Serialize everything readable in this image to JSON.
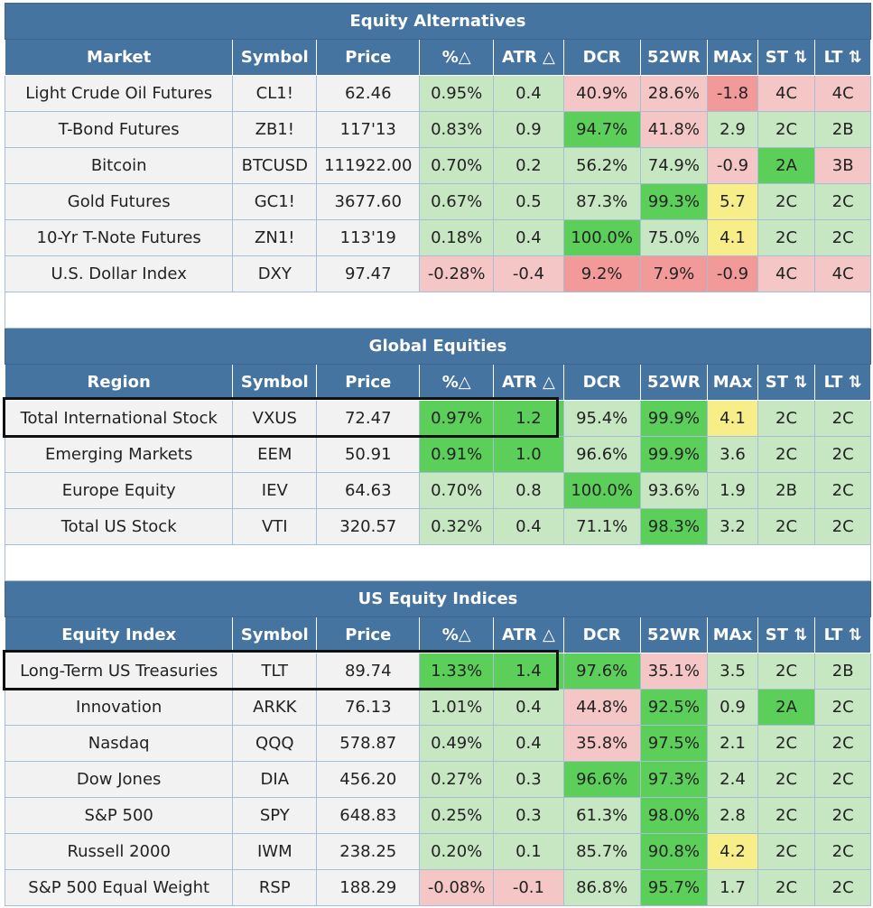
{
  "headers": [
    "Market",
    "Symbol",
    "Price",
    "%△",
    "ATR △",
    "DCR",
    "52WR",
    "MAx",
    "ST ⇅",
    "LT ⇅"
  ],
  "sections": [
    {
      "title": "Equity Alternatives",
      "first_header": "Market",
      "rows": [
        {
          "name": "Light Crude Oil Futures",
          "symbol": "CL1!",
          "price": "62.46",
          "pct": "0.95%",
          "atr": "0.4",
          "dcr": "40.9%",
          "wr": "28.6%",
          "max": "-1.8",
          "st": "4C",
          "lt": "4C"
        },
        {
          "name": "T-Bond Futures",
          "symbol": "ZB1!",
          "price": "117'13",
          "pct": "0.83%",
          "atr": "0.9",
          "dcr": "94.7%",
          "wr": "41.8%",
          "max": "2.9",
          "st": "2C",
          "lt": "2B"
        },
        {
          "name": "Bitcoin",
          "symbol": "BTCUSD",
          "price": "111922.00",
          "pct": "0.70%",
          "atr": "0.2",
          "dcr": "56.2%",
          "wr": "74.9%",
          "max": "-0.9",
          "st": "2A",
          "lt": "3B"
        },
        {
          "name": "Gold Futures",
          "symbol": "GC1!",
          "price": "3677.60",
          "pct": "0.67%",
          "atr": "0.5",
          "dcr": "87.3%",
          "wr": "99.3%",
          "max": "5.7",
          "st": "2C",
          "lt": "2C"
        },
        {
          "name": "10-Yr T-Note Futures",
          "symbol": "ZN1!",
          "price": "113'19",
          "pct": "0.18%",
          "atr": "0.4",
          "dcr": "100.0%",
          "wr": "75.0%",
          "max": "4.1",
          "st": "2C",
          "lt": "2C"
        },
        {
          "name": "U.S. Dollar Index",
          "symbol": "DXY",
          "price": "97.47",
          "pct": "-0.28%",
          "atr": "-0.4",
          "dcr": "9.2%",
          "wr": "7.9%",
          "max": "-0.9",
          "st": "4C",
          "lt": "4C"
        }
      ]
    },
    {
      "title": "Global Equities",
      "first_header": "Region",
      "rows": [
        {
          "name": "Total International Stock",
          "symbol": "VXUS",
          "price": "72.47",
          "pct": "0.97%",
          "atr": "1.2",
          "dcr": "95.4%",
          "wr": "99.9%",
          "max": "4.1",
          "st": "2C",
          "lt": "2C"
        },
        {
          "name": "Emerging Markets",
          "symbol": "EEM",
          "price": "50.91",
          "pct": "0.91%",
          "atr": "1.0",
          "dcr": "96.6%",
          "wr": "99.9%",
          "max": "3.6",
          "st": "2C",
          "lt": "2C"
        },
        {
          "name": "Europe Equity",
          "symbol": "IEV",
          "price": "64.63",
          "pct": "0.70%",
          "atr": "0.8",
          "dcr": "100.0%",
          "wr": "93.6%",
          "max": "1.9",
          "st": "2B",
          "lt": "2C"
        },
        {
          "name": "Total US Stock",
          "symbol": "VTI",
          "price": "320.57",
          "pct": "0.32%",
          "atr": "0.4",
          "dcr": "71.1%",
          "wr": "98.3%",
          "max": "3.2",
          "st": "2C",
          "lt": "2C"
        }
      ]
    },
    {
      "title": "US Equity Indices",
      "first_header": "Equity Index",
      "rows": [
        {
          "name": "Long-Term US Treasuries",
          "symbol": "TLT",
          "price": "89.74",
          "pct": "1.33%",
          "atr": "1.4",
          "dcr": "97.6%",
          "wr": "35.1%",
          "max": "3.5",
          "st": "2C",
          "lt": "2B"
        },
        {
          "name": "Innovation",
          "symbol": "ARKK",
          "price": "76.13",
          "pct": "1.01%",
          "atr": "0.4",
          "dcr": "44.8%",
          "wr": "92.5%",
          "max": "0.9",
          "st": "2A",
          "lt": "2C"
        },
        {
          "name": "Nasdaq",
          "symbol": "QQQ",
          "price": "578.87",
          "pct": "0.49%",
          "atr": "0.4",
          "dcr": "35.8%",
          "wr": "97.5%",
          "max": "2.1",
          "st": "2C",
          "lt": "2C"
        },
        {
          "name": "Dow Jones",
          "symbol": "DIA",
          "price": "456.20",
          "pct": "0.27%",
          "atr": "0.3",
          "dcr": "96.6%",
          "wr": "97.3%",
          "max": "2.4",
          "st": "2C",
          "lt": "2C"
        },
        {
          "name": "S&P 500",
          "symbol": "SPY",
          "price": "648.83",
          "pct": "0.25%",
          "atr": "0.3",
          "dcr": "61.3%",
          "wr": "98.0%",
          "max": "2.8",
          "st": "2C",
          "lt": "2C"
        },
        {
          "name": "Russell 2000",
          "symbol": "IWM",
          "price": "238.25",
          "pct": "0.20%",
          "atr": "0.1",
          "dcr": "85.7%",
          "wr": "90.8%",
          "max": "4.2",
          "st": "2C",
          "lt": "2C"
        },
        {
          "name": "S&P 500 Equal Weight",
          "symbol": "RSP",
          "price": "188.29",
          "pct": "-0.08%",
          "atr": "-0.1",
          "dcr": "86.8%",
          "wr": "95.7%",
          "max": "1.7",
          "st": "2C",
          "lt": "2C"
        }
      ]
    }
  ]
}
